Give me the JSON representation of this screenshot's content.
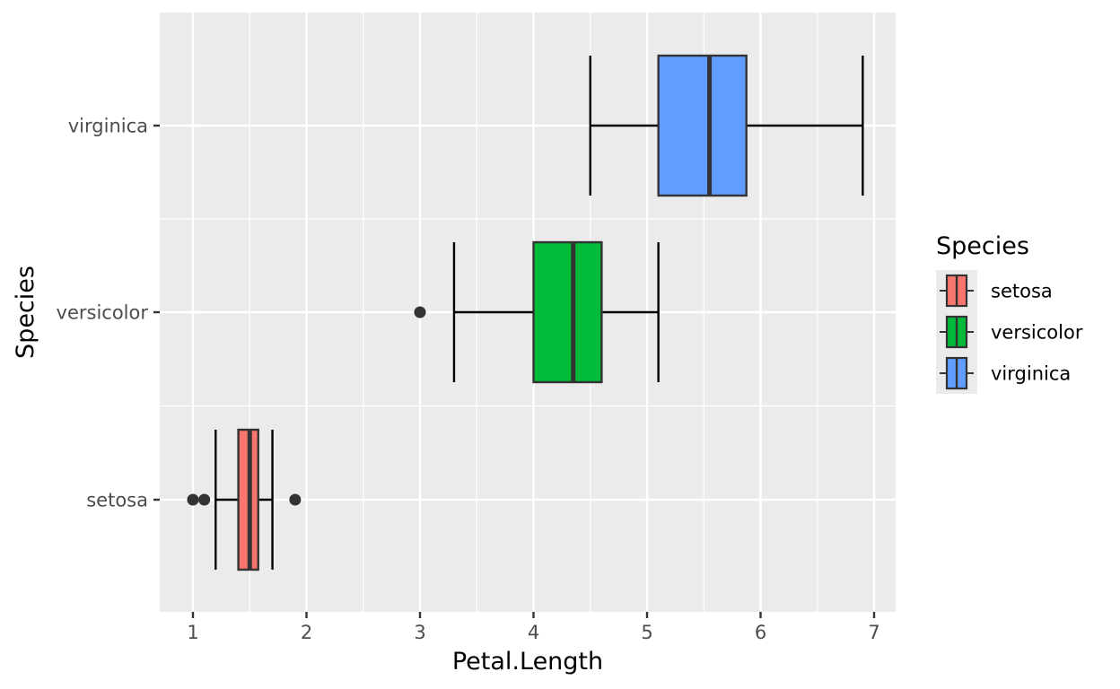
{
  "chart_data": {
    "type": "boxplot",
    "orientation": "horizontal",
    "xlabel": "Petal.Length",
    "ylabel": "Species",
    "xlim": [
      0.7,
      7.2
    ],
    "x_ticks": [
      1,
      2,
      3,
      4,
      5,
      6,
      7
    ],
    "x_tick_labels": [
      "1",
      "2",
      "3",
      "4",
      "5",
      "6",
      "7"
    ],
    "categories": [
      "setosa",
      "versicolor",
      "virginica"
    ],
    "series": [
      {
        "name": "setosa",
        "min": 1.2,
        "q1": 1.4,
        "median": 1.5,
        "q3": 1.575,
        "max": 1.7,
        "outliers": [
          1.0,
          1.1,
          1.9
        ],
        "color": "#F8766D"
      },
      {
        "name": "versicolor",
        "min": 3.3,
        "q1": 4.0,
        "median": 4.35,
        "q3": 4.6,
        "max": 5.1,
        "outliers": [
          3.0
        ],
        "color": "#00BA38"
      },
      {
        "name": "virginica",
        "min": 4.5,
        "q1": 5.1,
        "median": 5.55,
        "q3": 5.875,
        "max": 6.9,
        "outliers": [],
        "color": "#619CFF"
      }
    ],
    "legend": {
      "title": "Species",
      "position": "right",
      "entries": [
        "setosa",
        "versicolor",
        "virginica"
      ]
    },
    "panel_background": "#EBEBEB",
    "grid": true
  }
}
